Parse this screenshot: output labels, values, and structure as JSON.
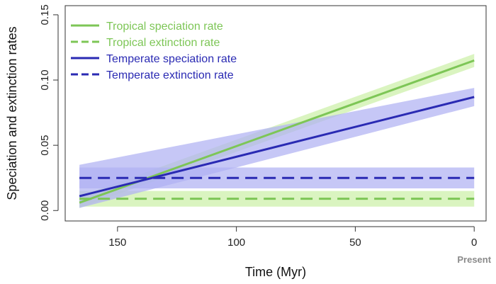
{
  "chart_data": {
    "type": "line",
    "xlabel": "Time (Myr)",
    "ylabel": "Speciation and extinction rates",
    "x_extra_label": "Present",
    "xlim": [
      172,
      -5
    ],
    "ylim": [
      -0.008,
      0.157
    ],
    "x_ticks": [
      150,
      100,
      50,
      0
    ],
    "x_tick_labels": [
      "150",
      "100",
      "50",
      "0"
    ],
    "y_ticks": [
      0.0,
      0.05,
      0.1,
      0.15
    ],
    "y_tick_labels": [
      "0.00",
      "0.05",
      "0.10",
      "0.15"
    ],
    "grid": false,
    "legend_position": "top-left",
    "series": [
      {
        "name": "Tropical speciation rate",
        "color": "#7dc656",
        "band_color": "#ccf0a8",
        "dash": "solid",
        "x": [
          166,
          0
        ],
        "y": [
          0.006,
          0.115
        ],
        "band_lower": [
          0.002,
          0.11
        ],
        "band_upper": [
          0.011,
          0.12
        ]
      },
      {
        "name": "Tropical extinction rate",
        "color": "#7dc656",
        "band_color": "#ccf0a8",
        "dash": "dashed",
        "x": [
          166,
          0
        ],
        "y": [
          0.009,
          0.009
        ],
        "band_lower": [
          0.003,
          0.003
        ],
        "band_upper": [
          0.015,
          0.015
        ]
      },
      {
        "name": "Temperate speciation rate",
        "color": "#2a2ab3",
        "band_color": "#b0b2f2",
        "dash": "solid",
        "x": [
          166,
          0
        ],
        "y": [
          0.011,
          0.087
        ],
        "band_lower": [
          0.002,
          0.08
        ],
        "band_upper": [
          0.035,
          0.094
        ]
      },
      {
        "name": "Temperate extinction rate",
        "color": "#2a2ab3",
        "band_color": "#b0b2f2",
        "dash": "dashed",
        "x": [
          166,
          0
        ],
        "y": [
          0.025,
          0.025
        ],
        "band_lower": [
          0.017,
          0.017
        ],
        "band_upper": [
          0.033,
          0.033
        ]
      }
    ]
  }
}
